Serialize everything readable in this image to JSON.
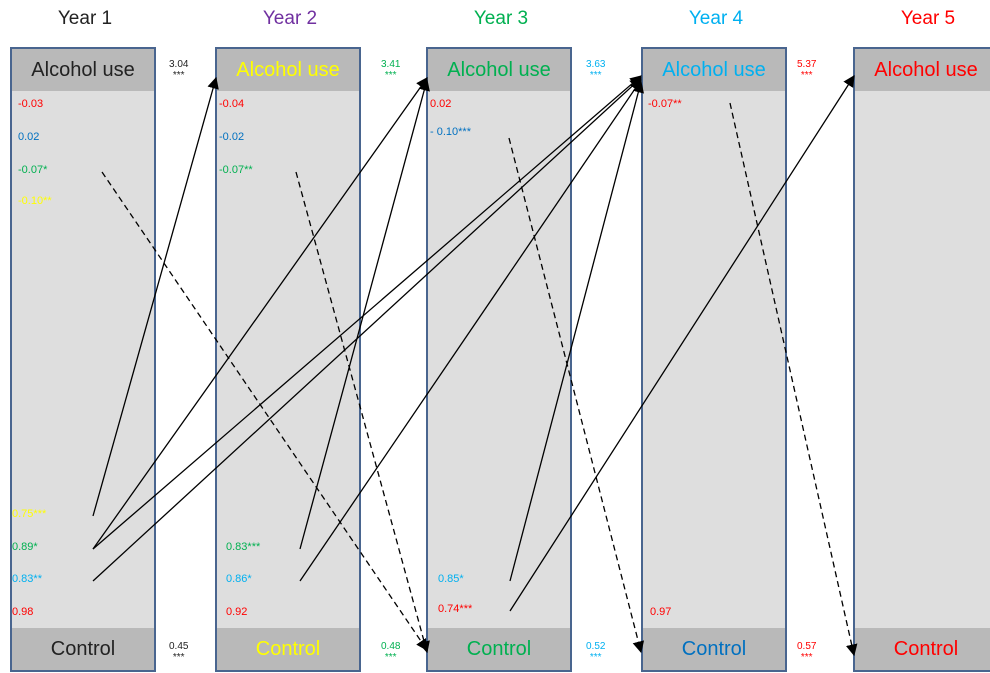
{
  "years": [
    {
      "title": "Year 1",
      "title_color": "#222222",
      "alcohol_label": "Alcohol use",
      "alcohol_color": "#222222",
      "control_label": "Control",
      "control_color": "#222222"
    },
    {
      "title": "Year 2",
      "title_color": "#7030a0",
      "alcohol_label": "Alcohol use",
      "alcohol_color": "#ffff00",
      "control_label": "Control",
      "control_color": "#ffff00"
    },
    {
      "title": "Year 3",
      "title_color": "#00b050",
      "alcohol_label": "Alcohol use",
      "alcohol_color": "#00b050",
      "control_label": "Control",
      "control_color": "#00b050"
    },
    {
      "title": "Year 4",
      "title_color": "#00b0f0",
      "alcohol_label": "Alcohol use",
      "alcohol_color": "#00b0f0",
      "control_label": "Control",
      "control_color": "#0070c0"
    },
    {
      "title": "Year 5",
      "title_color": "#ff0000",
      "alcohol_label": "Alcohol use",
      "alcohol_color": "#ff0000",
      "control_label": "Control",
      "control_color": "#ff0000"
    }
  ],
  "top_coefficients": [
    [
      {
        "text": "-0.03",
        "color": "#ff0000"
      },
      {
        "text": "0.02",
        "color": "#0070c0"
      },
      {
        "text": "-0.07*",
        "color": "#00b050"
      },
      {
        "text": "-0.10**",
        "color": "#ffff00"
      }
    ],
    [
      {
        "text": "-0.04",
        "color": "#ff0000"
      },
      {
        "text": "-0.02",
        "color": "#0070c0"
      },
      {
        "text": "-0.07**",
        "color": "#00b050"
      }
    ],
    [
      {
        "text": "0.02",
        "color": "#ff0000"
      },
      {
        "text": "- 0.10***",
        "color": "#0070c0"
      }
    ],
    [
      {
        "text": "-0.07**",
        "color": "#ff0000"
      }
    ]
  ],
  "bottom_coefficients": [
    [
      {
        "text": "0.75***",
        "color": "#ffff00"
      },
      {
        "text": "0.89*",
        "color": "#00b050"
      },
      {
        "text": "0.83**",
        "color": "#00b0f0"
      },
      {
        "text": "0.98",
        "color": "#ff0000"
      }
    ],
    [
      {
        "text": "0.83***",
        "color": "#00b050"
      },
      {
        "text": "0.86*",
        "color": "#00b0f0"
      },
      {
        "text": "0.92",
        "color": "#ff0000"
      }
    ],
    [
      {
        "text": "0.85*",
        "color": "#00b0f0"
      },
      {
        "text": "0.74***",
        "color": "#ff0000"
      }
    ],
    [
      {
        "text": "0.97",
        "color": "#ff0000"
      }
    ]
  ],
  "stability": {
    "alcohol": [
      {
        "value": "3.04",
        "stars": "***",
        "color": "#222222"
      },
      {
        "value": "3.41",
        "stars": "***",
        "color": "#00b050"
      },
      {
        "value": "3.63",
        "stars": "***",
        "color": "#00b0f0"
      },
      {
        "value": "5.37",
        "stars": "***",
        "color": "#ff0000"
      }
    ],
    "control": [
      {
        "value": "0.45",
        "stars": "***",
        "color": "#222222"
      },
      {
        "value": "0.48",
        "stars": "***",
        "color": "#00b050"
      },
      {
        "value": "0.52",
        "stars": "***",
        "color": "#00b0f0"
      },
      {
        "value": "0.57",
        "stars": "***",
        "color": "#ff0000"
      }
    ]
  }
}
